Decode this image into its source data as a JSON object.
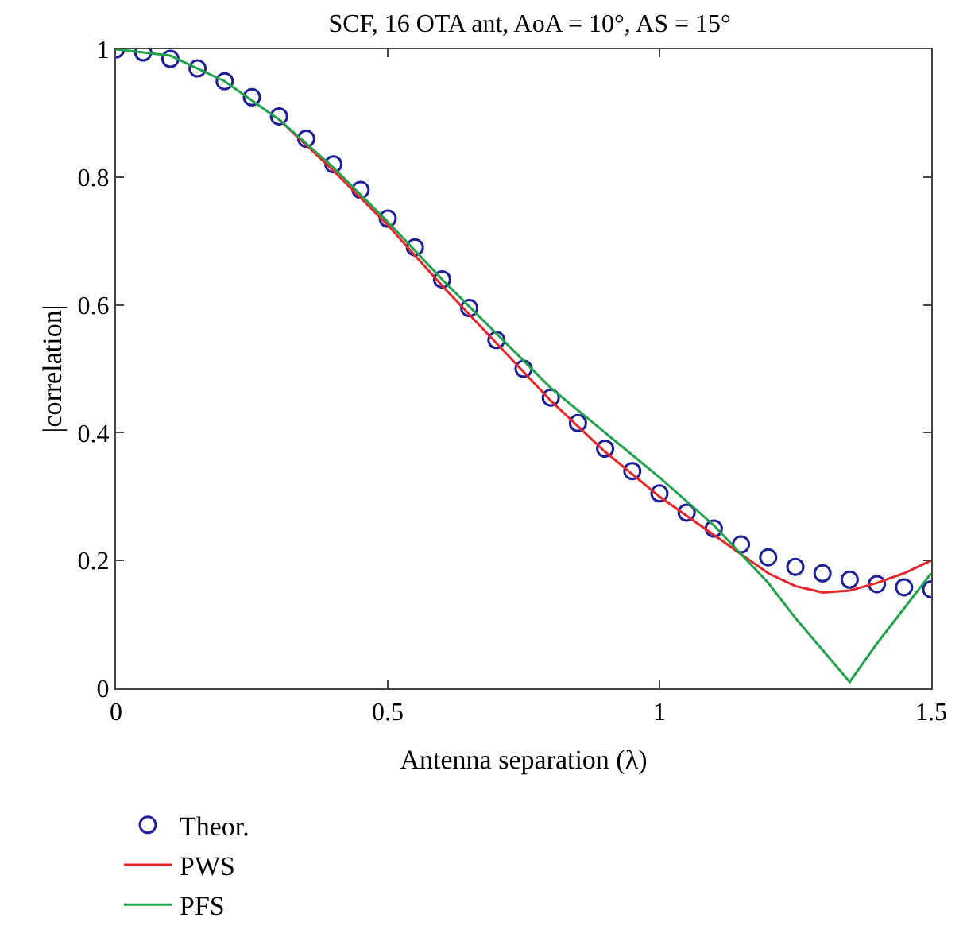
{
  "chart_data": {
    "type": "line",
    "title": "SCF, 16 OTA ant, AoA = 10°, AS = 15°",
    "xlabel": "Antenna separation (λ)",
    "ylabel": "|correlation|",
    "xlim": [
      0,
      1.5
    ],
    "ylim": [
      0,
      1
    ],
    "xticks": [
      0,
      0.5,
      1,
      1.5
    ],
    "yticks": [
      0,
      0.2,
      0.4,
      0.6,
      0.8,
      1
    ],
    "legend": "bottom left",
    "series": [
      {
        "name": "Theor.",
        "type": "scatter",
        "marker": "circle",
        "color": "#1f1f9a",
        "x": [
          0,
          0.05,
          0.1,
          0.15,
          0.2,
          0.25,
          0.3,
          0.35,
          0.4,
          0.45,
          0.5,
          0.55,
          0.6,
          0.65,
          0.7,
          0.75,
          0.8,
          0.85,
          0.9,
          0.95,
          1.0,
          1.05,
          1.1,
          1.15,
          1.2,
          1.25,
          1.3,
          1.35,
          1.4,
          1.45,
          1.5
        ],
        "values": [
          1,
          0.995,
          0.985,
          0.97,
          0.95,
          0.925,
          0.895,
          0.86,
          0.82,
          0.78,
          0.735,
          0.69,
          0.64,
          0.595,
          0.545,
          0.5,
          0.455,
          0.415,
          0.375,
          0.34,
          0.305,
          0.275,
          0.25,
          0.225,
          0.205,
          0.19,
          0.18,
          0.17,
          0.163,
          0.158,
          0.155
        ]
      },
      {
        "name": "PWS",
        "color": "#e8262a",
        "x": [
          0.3,
          0.4,
          0.5,
          0.6,
          0.7,
          0.8,
          0.9,
          1.0,
          1.05,
          1.1,
          1.15,
          1.2,
          1.25,
          1.3,
          1.35,
          1.4,
          1.45,
          1.5
        ],
        "values": [
          0.89,
          0.81,
          0.725,
          0.63,
          0.54,
          0.45,
          0.37,
          0.3,
          0.27,
          0.24,
          0.21,
          0.18,
          0.16,
          0.15,
          0.153,
          0.165,
          0.18,
          0.2
        ]
      },
      {
        "name": "PFS",
        "color": "#1ea34a",
        "x": [
          0,
          0.1,
          0.2,
          0.3,
          0.4,
          0.5,
          0.6,
          0.7,
          0.8,
          0.9,
          1.0,
          1.1,
          1.15,
          1.2,
          1.25,
          1.3,
          1.35,
          1.4,
          1.45,
          1.5
        ],
        "values": [
          1,
          0.99,
          0.95,
          0.89,
          0.815,
          0.73,
          0.64,
          0.555,
          0.47,
          0.4,
          0.33,
          0.255,
          0.21,
          0.165,
          0.11,
          0.06,
          0.01,
          0.07,
          0.125,
          0.18
        ]
      }
    ]
  }
}
